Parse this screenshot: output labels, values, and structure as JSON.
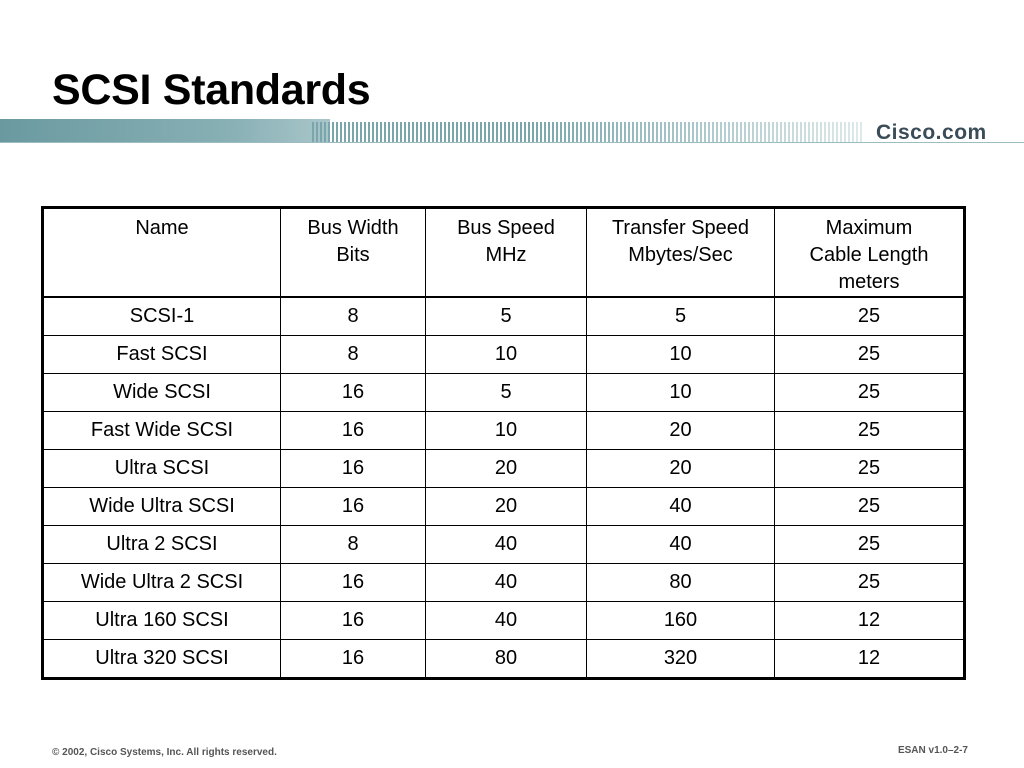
{
  "slide": {
    "title": "SCSI Standards",
    "logo_text": "Cisco.com"
  },
  "table": {
    "headers": [
      [
        "Name"
      ],
      [
        "Bus Width",
        "Bits"
      ],
      [
        "Bus Speed",
        "MHz"
      ],
      [
        "Transfer Speed",
        "Mbytes/Sec"
      ],
      [
        "Maximum",
        "Cable Length",
        "meters"
      ]
    ],
    "rows": [
      [
        "SCSI-1",
        "8",
        "5",
        "5",
        "25"
      ],
      [
        "Fast SCSI",
        "8",
        "10",
        "10",
        "25"
      ],
      [
        "Wide SCSI",
        "16",
        "5",
        "10",
        "25"
      ],
      [
        "Fast Wide SCSI",
        "16",
        "10",
        "20",
        "25"
      ],
      [
        "Ultra SCSI",
        "16",
        "20",
        "20",
        "25"
      ],
      [
        "Wide Ultra SCSI",
        "16",
        "20",
        "40",
        "25"
      ],
      [
        "Ultra 2 SCSI",
        "8",
        "40",
        "40",
        "25"
      ],
      [
        "Wide Ultra 2 SCSI",
        "16",
        "40",
        "80",
        "25"
      ],
      [
        "Ultra 160 SCSI",
        "16",
        "40",
        "160",
        "12"
      ],
      [
        "Ultra 320 SCSI",
        "16",
        "80",
        "320",
        "12"
      ]
    ]
  },
  "footer": {
    "copyright": "© 2002, Cisco Systems, Inc. All rights reserved.",
    "slide_id": "ESAN v1.0–2-7"
  },
  "colors": {
    "title_bar": "#7aa6ab",
    "logo": "#3a4c58"
  }
}
